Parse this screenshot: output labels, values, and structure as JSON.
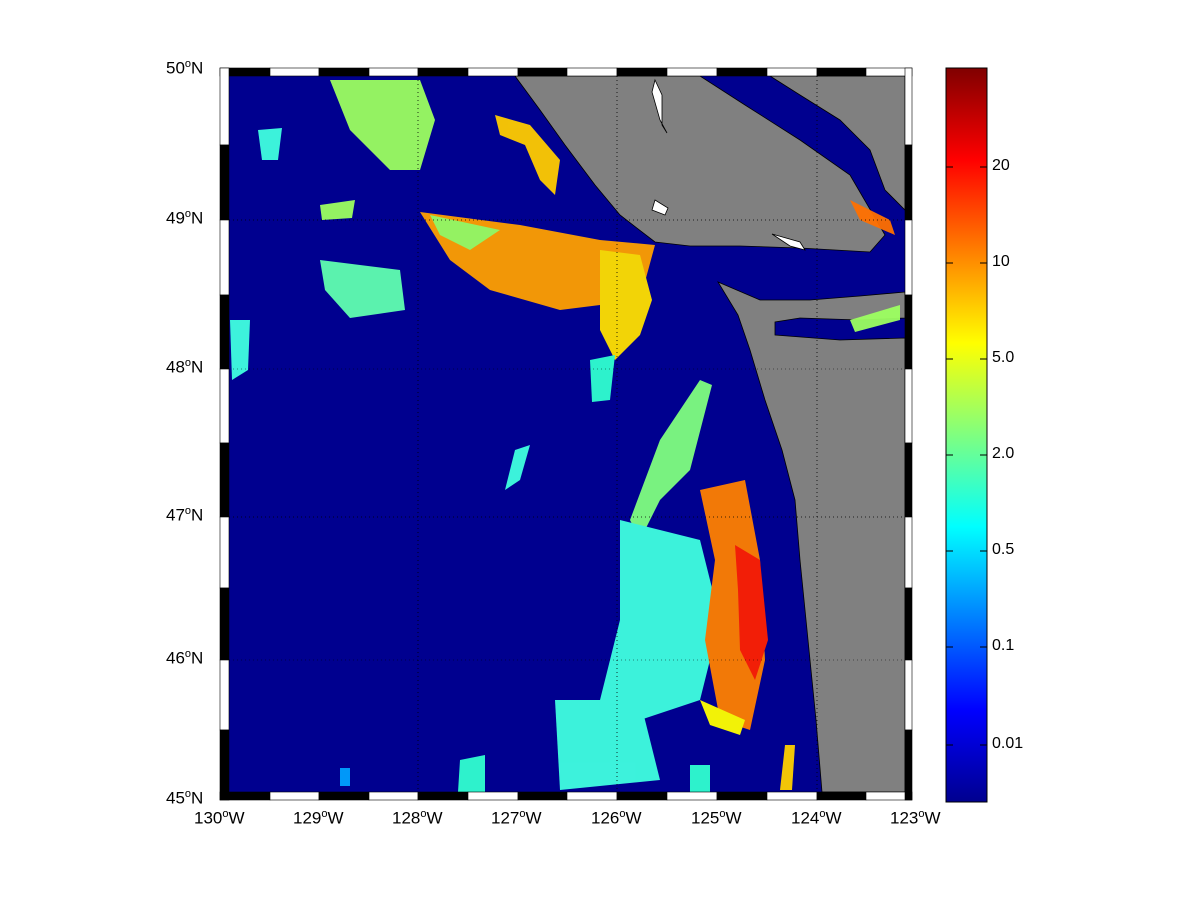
{
  "map": {
    "lon_range": [
      -130,
      -123
    ],
    "lat_range": [
      45,
      50
    ],
    "lon_labels": [
      {
        "deg": "130",
        "hem": "W"
      },
      {
        "deg": "129",
        "hem": "W"
      },
      {
        "deg": "128",
        "hem": "W"
      },
      {
        "deg": "127",
        "hem": "W"
      },
      {
        "deg": "126",
        "hem": "W"
      },
      {
        "deg": "125",
        "hem": "W"
      },
      {
        "deg": "124",
        "hem": "W"
      },
      {
        "deg": "123",
        "hem": "W"
      }
    ],
    "lat_labels": [
      {
        "deg": "50",
        "hem": "N"
      },
      {
        "deg": "49",
        "hem": "N"
      },
      {
        "deg": "48",
        "hem": "N"
      },
      {
        "deg": "47",
        "hem": "N"
      },
      {
        "deg": "46",
        "hem": "N"
      },
      {
        "deg": "45",
        "hem": "N"
      }
    ],
    "grid": "dotted",
    "ocean_color": "#00008f",
    "land_color": "#808080",
    "colormap": "jet"
  },
  "colorbar": {
    "ticks": [
      "20",
      "10",
      "5.0",
      "2.0",
      "0.5",
      "0.1",
      "0.01"
    ],
    "scale": "nonlinear",
    "colors": [
      "#00008f",
      "#0000ff",
      "#00ffff",
      "#ffff00",
      "#ff0000",
      "#800000"
    ]
  }
}
